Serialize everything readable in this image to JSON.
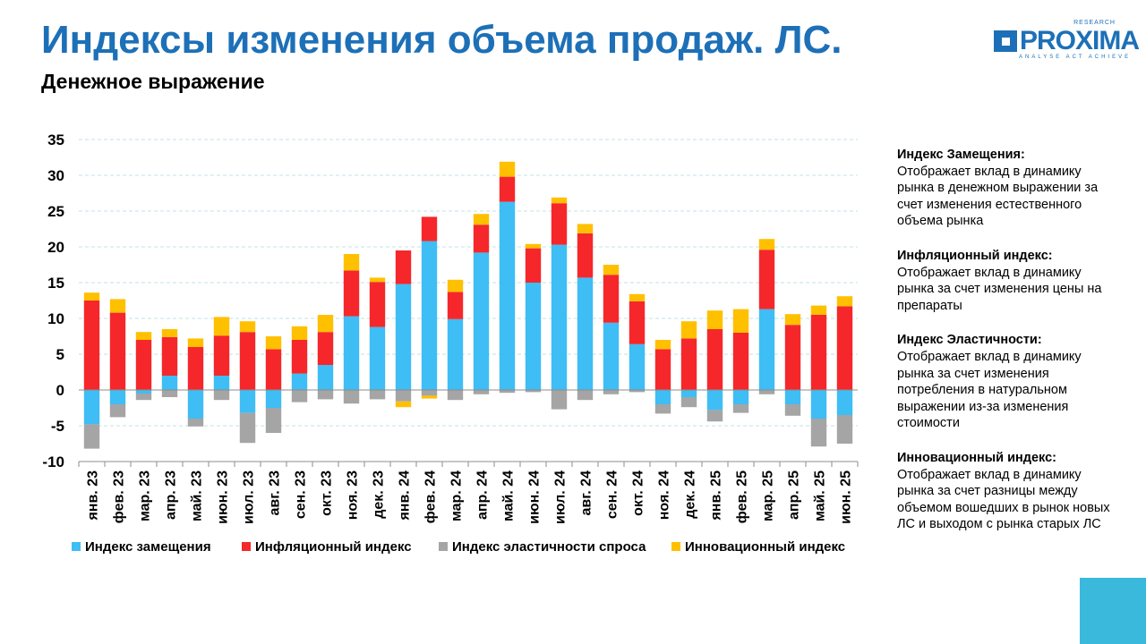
{
  "header": {
    "title": "Индексы изменения объема продаж. ЛС.",
    "subtitle": "Денежное выражение"
  },
  "logo": {
    "word": "PROXIMA",
    "research": "RESEARCH",
    "tagline": "ANALYSE ACT ACHIEVE"
  },
  "notes": [
    {
      "title": "Индекс Замещения:",
      "text": "Отображает вклад в динамику рынка в денежном выражении за счет изменения естественного объема рынка"
    },
    {
      "title": "Инфляционный индекс:",
      "text": "Отображает вклад в динамику рынка за счет изменения цены на препараты"
    },
    {
      "title": "Индекс Эластичности:",
      "text": "Отображает вклад в динамику рынка за счет изменения потребления в натуральном выражении из-за изменения стоимости"
    },
    {
      "title": "Инновационный индекс:",
      "text": "Отображает вклад в динамику рынка за счет разницы между объемом вошедших в рынок новых ЛС и выходом с рынка старых ЛС"
    }
  ],
  "colors": {
    "title": "#1d70b7",
    "accent": "#3ab9dd"
  },
  "chart_data": {
    "type": "bar",
    "stacked": true,
    "categories": [
      "янв. 23",
      "фев. 23",
      "мар. 23",
      "апр. 23",
      "май. 23",
      "июн. 23",
      "июл. 23",
      "авг. 23",
      "сен. 23",
      "окт. 23",
      "ноя. 23",
      "дек. 23",
      "янв. 24",
      "фев. 24",
      "мар. 24",
      "апр. 24",
      "май. 24",
      "июн. 24",
      "июл. 24",
      "авг. 24",
      "сен. 24",
      "окт. 24",
      "ноя. 24",
      "дек. 24",
      "янв. 25",
      "фев. 25",
      "мар. 25",
      "апр. 25",
      "май. 25",
      "июн. 25"
    ],
    "series": [
      {
        "name": "Индекс замещения",
        "color": "#3fbdf5",
        "values": [
          -4.8,
          -2.0,
          -0.5,
          2.0,
          -4.0,
          2.0,
          -3.2,
          -2.5,
          2.3,
          3.5,
          10.3,
          8.8,
          14.8,
          20.8,
          9.9,
          19.2,
          26.3,
          15.0,
          20.3,
          15.7,
          9.4,
          6.4,
          -2.0,
          -1.0,
          -2.8,
          -2.0,
          11.3,
          -2.0,
          -4.0,
          -3.5
        ]
      },
      {
        "name": "Инфляционный индекс",
        "color": "#f5272b",
        "values": [
          12.5,
          10.8,
          7.0,
          5.4,
          6.0,
          5.6,
          8.1,
          5.7,
          4.7,
          4.6,
          6.4,
          6.3,
          4.7,
          3.4,
          3.8,
          3.9,
          3.5,
          4.8,
          5.8,
          6.2,
          6.7,
          6.0,
          5.7,
          7.2,
          8.5,
          8.0,
          8.3,
          9.1,
          10.5,
          11.7
        ]
      },
      {
        "name": "Индекс эластичности спроса",
        "color": "#a5a5a5",
        "values": [
          -3.4,
          -1.8,
          -0.9,
          -1.0,
          -1.1,
          -1.4,
          -4.2,
          -3.5,
          -1.7,
          -1.3,
          -1.9,
          -1.3,
          -1.6,
          -0.8,
          -1.4,
          -0.6,
          -0.4,
          -0.3,
          -2.7,
          -1.4,
          -0.6,
          -0.3,
          -1.3,
          -1.4,
          -1.6,
          -1.2,
          -0.6,
          -1.6,
          -3.9,
          -4.0
        ]
      },
      {
        "name": "Инновационный индекс",
        "color": "#ffc000",
        "values": [
          1.1,
          1.9,
          1.1,
          1.1,
          1.2,
          2.6,
          1.5,
          1.8,
          1.9,
          2.4,
          2.3,
          0.6,
          -0.8,
          -0.4,
          1.7,
          1.5,
          2.1,
          0.6,
          0.8,
          1.3,
          1.4,
          1.0,
          1.3,
          2.4,
          2.6,
          3.3,
          1.5,
          1.5,
          1.3,
          1.4
        ]
      }
    ],
    "ylim": [
      -10,
      35
    ],
    "yticks": [
      -10,
      -5,
      0,
      5,
      10,
      15,
      20,
      25,
      30,
      35
    ],
    "grid": true,
    "legend": "bottom"
  }
}
